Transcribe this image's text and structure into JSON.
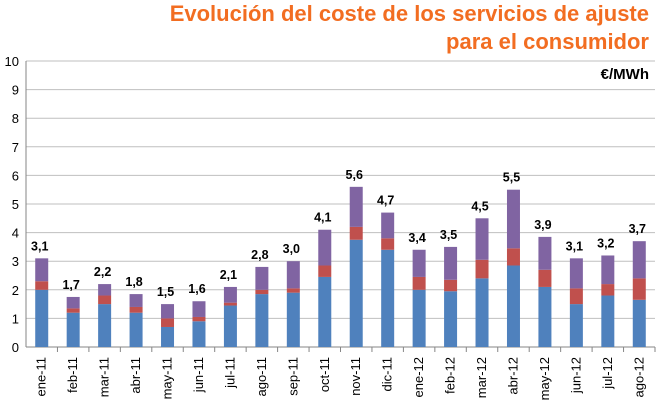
{
  "chart_data": {
    "type": "bar",
    "stacked": true,
    "title_line1": "Evolución del coste de los servicios de ajuste",
    "title_line2": "para el consumidor",
    "unit": "€/MWh",
    "ylim": [
      0,
      10
    ],
    "yticks": [
      "0",
      "1",
      "2",
      "3",
      "4",
      "5",
      "6",
      "7",
      "8",
      "9",
      "10"
    ],
    "grid": true,
    "categories": [
      "ene-11",
      "feb-11",
      "mar-11",
      "abr-11",
      "may-11",
      "jun-11",
      "jul-11",
      "ago-11",
      "sep-11",
      "oct-11",
      "nov-11",
      "dic-11",
      "ene-12",
      "feb-12",
      "mar-12",
      "abr-12",
      "may-12",
      "jun-12",
      "jul-12",
      "ago-12"
    ],
    "series": [
      {
        "color": "#4f81bd",
        "values": [
          2.0,
          1.2,
          1.5,
          1.2,
          0.7,
          0.9,
          1.45,
          1.85,
          1.9,
          2.45,
          3.75,
          3.4,
          2.0,
          1.95,
          2.4,
          2.85,
          2.1,
          1.5,
          1.8,
          1.65
        ]
      },
      {
        "color": "#c0504d",
        "values": [
          0.3,
          0.15,
          0.3,
          0.2,
          0.3,
          0.15,
          0.1,
          0.15,
          0.15,
          0.4,
          0.45,
          0.4,
          0.45,
          0.4,
          0.65,
          0.6,
          0.6,
          0.55,
          0.4,
          0.75
        ]
      },
      {
        "color": "#8064a2",
        "values": [
          0.8,
          0.4,
          0.4,
          0.45,
          0.5,
          0.55,
          0.55,
          0.8,
          0.95,
          1.25,
          1.4,
          0.9,
          0.95,
          1.15,
          1.45,
          2.05,
          1.15,
          1.05,
          1.0,
          1.3
        ]
      }
    ],
    "totals": [
      "3,1",
      "1,7",
      "2,2",
      "1,8",
      "1,5",
      "1,6",
      "2,1",
      "2,8",
      "3,0",
      "4,1",
      "5,6",
      "4,7",
      "3,4",
      "3,5",
      "4,5",
      "5,5",
      "3,9",
      "3,1",
      "3,2",
      "3,7"
    ]
  }
}
